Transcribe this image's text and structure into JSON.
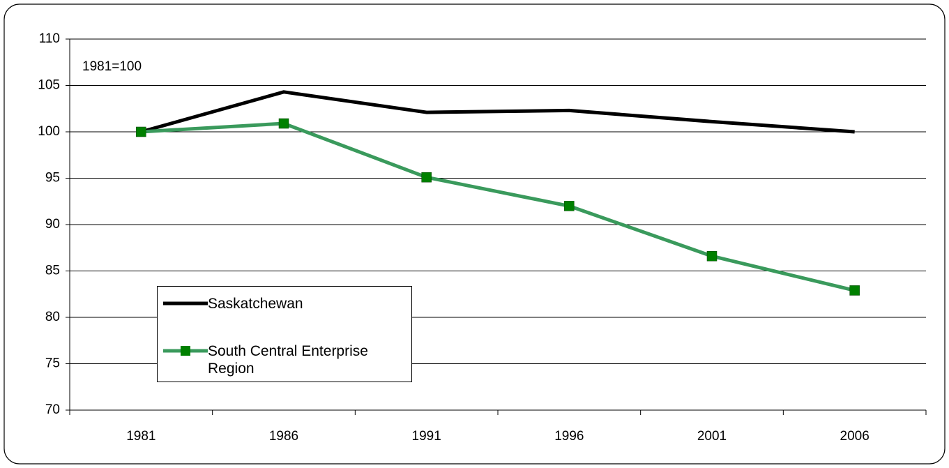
{
  "chart_data": {
    "type": "line",
    "annotation": "1981=100",
    "categories": [
      "1981",
      "1986",
      "1991",
      "1996",
      "2001",
      "2006"
    ],
    "series": [
      {
        "name": "Saskatchewan",
        "color": "#000000",
        "marker": false,
        "values": [
          100,
          104.3,
          102.1,
          102.3,
          101.1,
          100
        ]
      },
      {
        "name": "South Central Enterprise Region",
        "color": "#3a9a5c",
        "marker_color": "#008000",
        "marker": true,
        "values": [
          100,
          100.9,
          95.1,
          92.0,
          86.6,
          82.9
        ]
      }
    ],
    "ylim": [
      70,
      110
    ],
    "yticks": [
      70,
      75,
      80,
      85,
      90,
      95,
      100,
      105,
      110
    ],
    "grid": true
  }
}
